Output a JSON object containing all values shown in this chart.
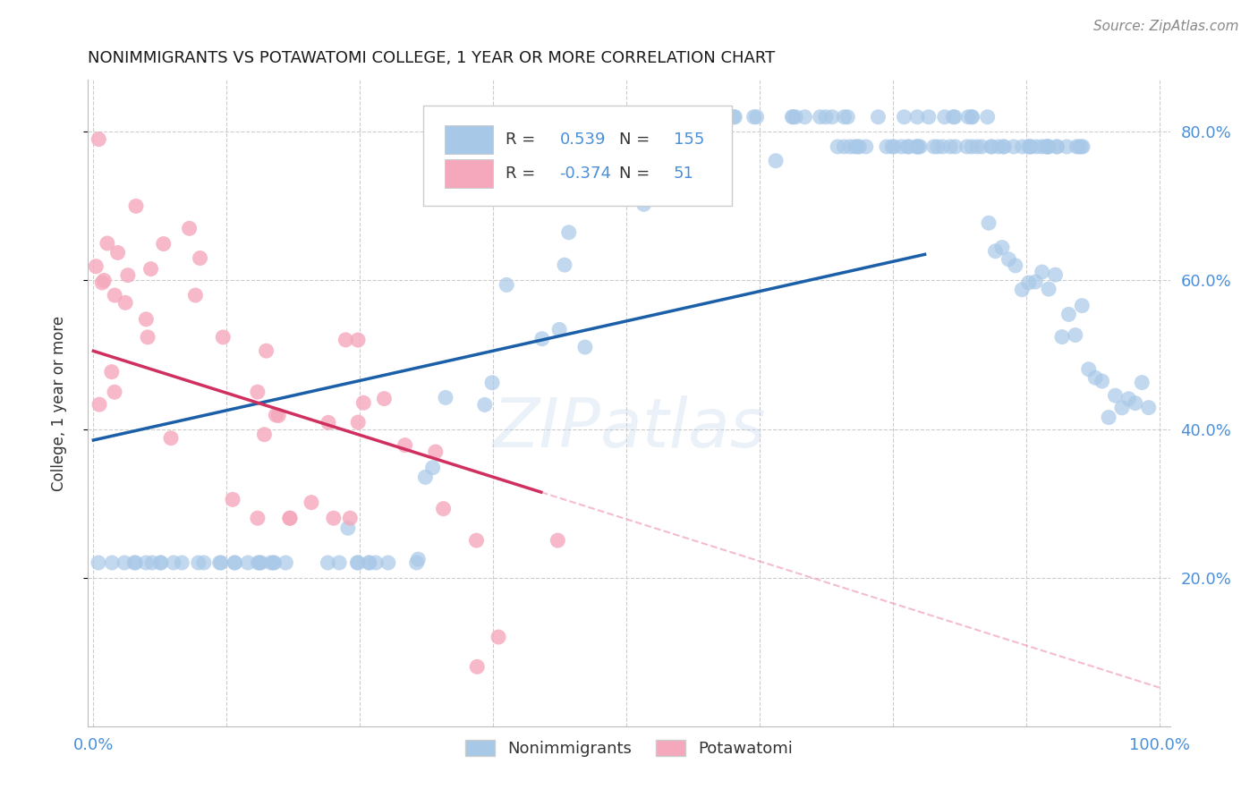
{
  "title": "NONIMMIGRANTS VS POTAWATOMI COLLEGE, 1 YEAR OR MORE CORRELATION CHART",
  "source": "Source: ZipAtlas.com",
  "ylabel": "College, 1 year or more",
  "ytick_labels": [
    "80.0%",
    "60.0%",
    "40.0%",
    "20.0%"
  ],
  "ytick_vals": [
    0.8,
    0.6,
    0.4,
    0.2
  ],
  "blue_R": 0.539,
  "blue_N": 155,
  "pink_R": -0.374,
  "pink_N": 51,
  "blue_dot_color": "#a8c8e8",
  "pink_dot_color": "#f5a8bc",
  "blue_line_color": "#1a5fa8",
  "pink_line_color": "#d03060",
  "pink_dash_color": "#f0a0b8",
  "blue_line": [
    [
      0.0,
      0.385
    ],
    [
      0.78,
      0.635
    ]
  ],
  "pink_line_solid": [
    [
      0.0,
      0.505
    ],
    [
      0.42,
      0.315
    ]
  ],
  "pink_line_dash": [
    [
      0.42,
      0.315
    ],
    [
      1.0,
      0.052
    ]
  ],
  "legend_label_blue": "Nonimmigrants",
  "legend_label_pink": "Potawatomi",
  "watermark": "ZIPatlas",
  "bg_color": "#ffffff",
  "grid_color": "#cccccc",
  "xlim": [
    -0.005,
    1.01
  ],
  "ylim": [
    0.0,
    0.87
  ],
  "tick_color": "#4a90d9",
  "pink_val_color": "#d03060",
  "seed": 42
}
